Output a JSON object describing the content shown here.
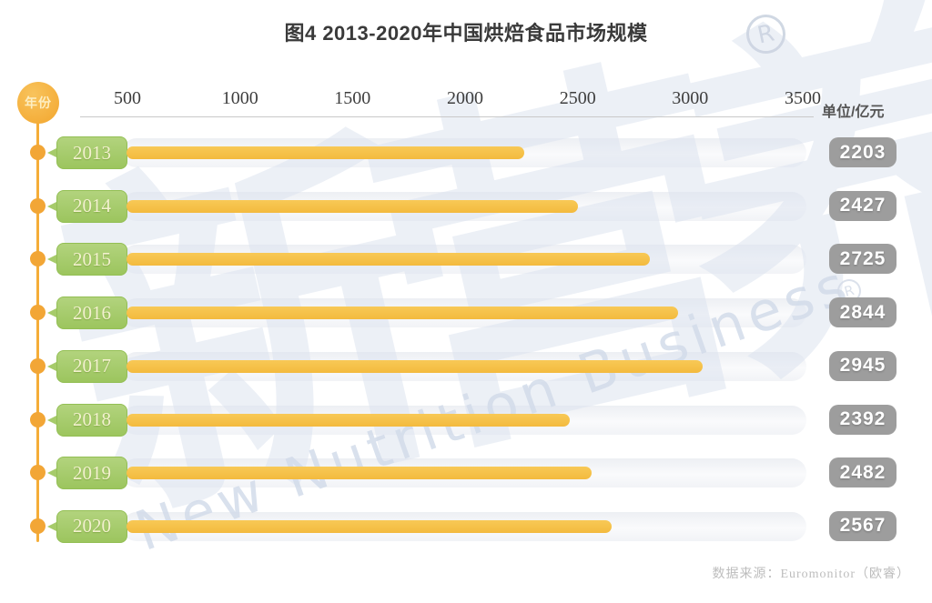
{
  "title": "图4 2013-2020年中国烘焙食品市场规模",
  "axis": {
    "ticks": [
      "500",
      "1000",
      "1500",
      "2000",
      "2500",
      "3000",
      "3500"
    ],
    "unit_label": "单位/亿元"
  },
  "timeline": {
    "label": "年份"
  },
  "rows": [
    {
      "year": "2013",
      "value": "2203"
    },
    {
      "year": "2014",
      "value": "2427"
    },
    {
      "year": "2015",
      "value": "2725"
    },
    {
      "year": "2016",
      "value": "2844"
    },
    {
      "year": "2017",
      "value": "2945"
    },
    {
      "year": "2018",
      "value": "2392"
    },
    {
      "year": "2019",
      "value": "2482"
    },
    {
      "year": "2020",
      "value": "2567"
    }
  ],
  "source": "数据来源：Euromonitor（欧睿）",
  "watermark": {
    "cn": "新营养",
    "en": "New Nutrition Business",
    "registered": "R"
  },
  "colors": {
    "bar": "#f5c14a",
    "year_badge": "#a7cd6d",
    "timeline_orange": "#f3a836",
    "value_badge": "#9d9d9d",
    "watermark_blue": "#dde4f0",
    "track": "#eef0f4"
  },
  "chart_data": {
    "type": "bar",
    "orientation": "horizontal",
    "title": "图4 2013-2020年中国烘焙食品市场规模",
    "categories": [
      "2013",
      "2014",
      "2015",
      "2016",
      "2017",
      "2018",
      "2019",
      "2020"
    ],
    "values": [
      2203,
      2427,
      2725,
      2844,
      2945,
      2392,
      2482,
      2567
    ],
    "xlabel": "单位/亿元",
    "ylabel": "年份",
    "xlim": [
      0,
      3500
    ],
    "xticks": [
      500,
      1000,
      1500,
      2000,
      2500,
      3000,
      3500
    ],
    "grid": false,
    "legend": false,
    "source": "数据来源：Euromonitor（欧睿）"
  }
}
